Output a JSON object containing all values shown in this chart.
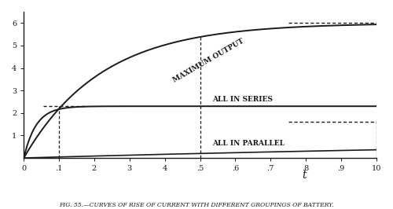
{
  "title": "FIG. 55.—CURVES OF RISE OF CURRENT WITH DIFFERENT GROUPINGS OF BATTERY.",
  "xlim": [
    0,
    1.0
  ],
  "ylim": [
    0,
    6.5
  ],
  "xticks": [
    0,
    0.1,
    0.2,
    0.3,
    0.4,
    0.5,
    0.6,
    0.7,
    0.8,
    0.9,
    1.0
  ],
  "xticklabels": [
    "0",
    ".1",
    "2",
    "3",
    "4",
    ".5",
    ".6",
    ".7",
    ".8",
    ".9",
    "10"
  ],
  "yticks": [
    1,
    2,
    3,
    4,
    5,
    6
  ],
  "yticklabels": [
    "1",
    "2",
    "3",
    "4",
    "5",
    "6"
  ],
  "max_output_asymptote": 6.0,
  "max_output_tau": 0.22,
  "series_asymptote": 2.3,
  "series_tau": 0.035,
  "parallel_asymptote": 1.1,
  "parallel_tau": 2.5,
  "vline1_x": 0.1,
  "vline2_x": 0.5,
  "vline3_x": 1.0,
  "label_max_output": "MAXIMUM OUTPUT",
  "label_series": "ALL IN SERIES",
  "label_parallel": "ALL IN PARALLEL",
  "label_t": "t",
  "background_color": "#ffffff",
  "line_color": "#1a1a1a",
  "font_size_labels": 6.5,
  "font_size_tick": 7,
  "font_size_title": 5.5
}
